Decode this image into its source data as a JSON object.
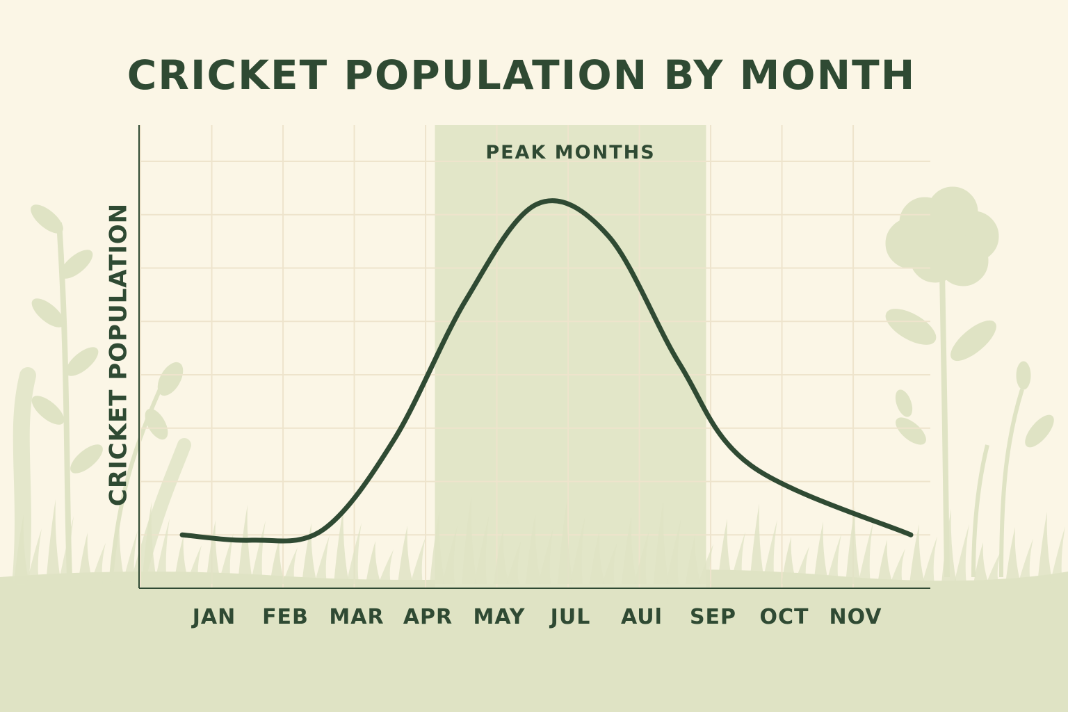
{
  "chart_data": {
    "type": "line",
    "title": "CRICKET POPULATION BY MONTH",
    "xlabel": "",
    "ylabel": "CRICKET POPULATION",
    "categories": [
      "JAN",
      "FEB",
      "MAR",
      "APR",
      "MAY",
      "JUL",
      "AUl",
      "SEP",
      "OCT",
      "NOV"
    ],
    "series": [
      {
        "values": [
          1.0,
          0.9,
          1.1,
          2.8,
          5.4,
          7.2,
          6.6,
          4.2,
          2.3,
          1.0
        ]
      }
    ],
    "ylim": [
      0,
      8
    ],
    "grid": true,
    "annotations": [
      {
        "label": "PEAK MONTHS",
        "x_start": "APR",
        "x_end": "SEP"
      }
    ],
    "colors": {
      "line": "#2f4a33",
      "text": "#2f4a33",
      "highlight": "#e2e6c8",
      "grid": "#eee4cc",
      "background": "#fbf6e6",
      "foliage": "#dfe3c4"
    }
  }
}
